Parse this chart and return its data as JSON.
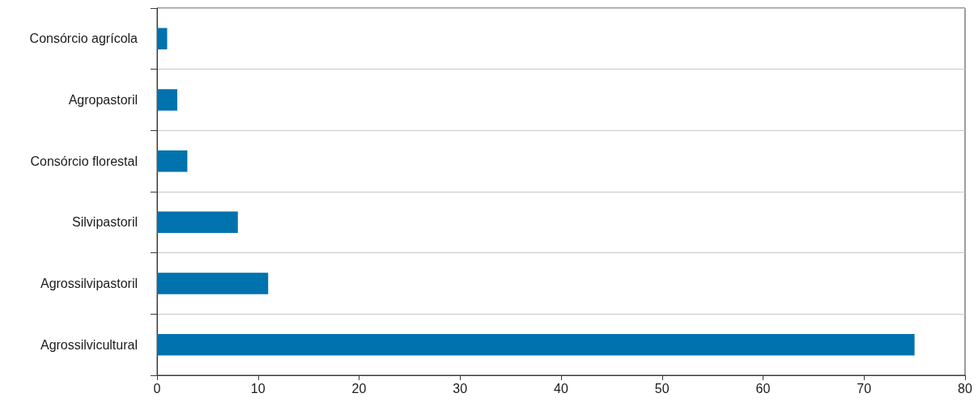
{
  "chart_data": {
    "type": "bar",
    "orientation": "horizontal",
    "categories": [
      "Consórcio agrícola",
      "Agropastoril",
      "Consórcio florestal",
      "Silvipastoril",
      "Agrossilvipastoril",
      "Agrossilvicultural"
    ],
    "values": [
      1,
      2,
      3,
      8,
      11,
      75
    ],
    "color": "#0072ae",
    "xlim": [
      0,
      80
    ],
    "xticks": [
      0,
      10,
      20,
      30,
      40,
      50,
      60,
      70,
      80
    ],
    "grid": "y"
  }
}
